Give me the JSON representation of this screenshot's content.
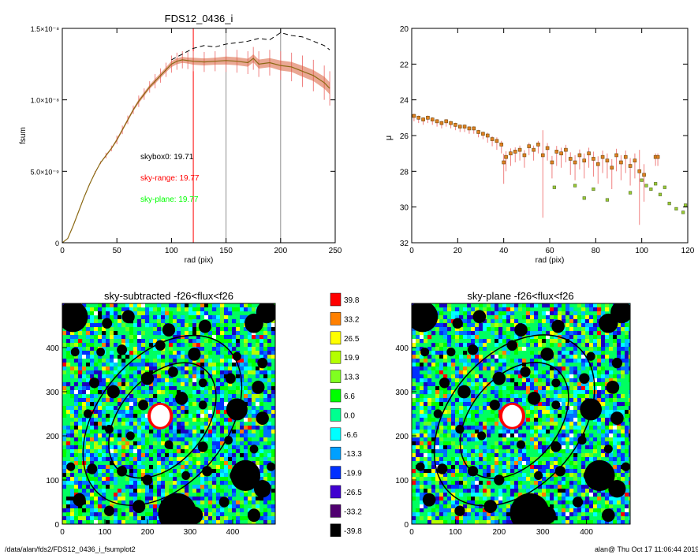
{
  "footer": {
    "path": "/data/alan/fds2/FDS12_0436_i_fsumplot2",
    "stamp": "alan@  Thu Oct 17 11:06:44 2019"
  },
  "colors": {
    "data_line": "#000000",
    "sky_range": "#ff0000",
    "sky_plane": "#00ff00",
    "error_bar": "#f08080",
    "profile_fill": "#d95f3a",
    "profile_line": "#8b6914",
    "vline_sky_range": "#ff0000",
    "vline_gray": "#909090"
  },
  "chart_data": [
    {
      "type": "line",
      "title": "FDS12_0436_i",
      "xlabel": "rad (pix)",
      "ylabel": "fsum",
      "xlim": [
        0,
        250
      ],
      "ylim": [
        0,
        1.5e-08
      ],
      "x_ticks": [
        "0",
        "50",
        "100",
        "150",
        "200",
        "250"
      ],
      "y_ticks": [
        {
          "value": 0,
          "label": "0"
        },
        {
          "value": 5e-09,
          "label": "5.0×10⁻⁹"
        },
        {
          "value": 1e-08,
          "label": "1.0×10⁻⁸"
        },
        {
          "value": 1.5e-08,
          "label": "1.5×10⁻⁸"
        }
      ],
      "annotations": [
        {
          "text": "skybox0: 19.71",
          "color": "#000000"
        },
        {
          "text": "sky-range: 19.77",
          "color": "#ff0000"
        },
        {
          "text": "sky-plane: 19.77",
          "color": "#00ff00"
        }
      ],
      "vertical_lines": [
        {
          "x": 120,
          "color": "#ff0000"
        },
        {
          "x": 150,
          "color": "#909090"
        },
        {
          "x": 200,
          "color": "#909090"
        }
      ],
      "series": [
        {
          "style": "solid",
          "x": [
            0,
            5,
            10,
            15,
            20,
            25,
            30,
            35,
            40,
            45,
            50,
            55,
            60,
            65,
            70,
            75,
            80,
            85,
            90,
            95,
            100,
            105,
            110,
            115,
            120,
            130,
            140,
            150,
            160,
            170,
            175,
            180,
            190,
            200,
            210,
            220,
            230,
            240,
            245
          ],
          "y": [
            0,
            3e-10,
            1.2e-09,
            2.2e-09,
            3.2e-09,
            4.1e-09,
            4.9e-09,
            5.6e-09,
            6.1e-09,
            6.6e-09,
            7.2e-09,
            7.9e-09,
            8.6e-09,
            9.3e-09,
            9.9e-09,
            1.04e-08,
            1.09e-08,
            1.13e-08,
            1.17e-08,
            1.21e-08,
            1.25e-08,
            1.27e-08,
            1.28e-08,
            1.275e-08,
            1.27e-08,
            1.265e-08,
            1.27e-08,
            1.275e-08,
            1.27e-08,
            1.26e-08,
            1.29e-08,
            1.25e-08,
            1.26e-08,
            1.24e-08,
            1.23e-08,
            1.2e-08,
            1.17e-08,
            1.12e-08,
            1.08e-08
          ],
          "yerr": [
            0,
            0,
            0,
            0,
            0,
            0,
            1e-10,
            1e-10,
            2e-10,
            2e-10,
            3e-10,
            3e-10,
            3e-10,
            3e-10,
            4e-10,
            4e-10,
            4e-10,
            5e-10,
            5e-10,
            5e-10,
            6e-10,
            6e-10,
            6e-10,
            6e-10,
            7e-10,
            7e-10,
            7e-10,
            8e-10,
            8e-10,
            8e-10,
            8e-10,
            9e-10,
            9e-10,
            1e-09,
            1e-09,
            1.1e-09,
            1.1e-09,
            1.2e-09,
            1.2e-09
          ]
        },
        {
          "style": "dashed",
          "x": [
            100,
            110,
            120,
            130,
            140,
            150,
            160,
            170,
            180,
            190,
            200,
            210,
            220,
            230,
            240,
            245
          ],
          "y": [
            1.28e-08,
            1.32e-08,
            1.36e-08,
            1.38e-08,
            1.37e-08,
            1.39e-08,
            1.4e-08,
            1.41e-08,
            1.43e-08,
            1.42e-08,
            1.47e-08,
            1.45e-08,
            1.44e-08,
            1.41e-08,
            1.38e-08,
            1.35e-08
          ]
        }
      ]
    },
    {
      "type": "scatter",
      "xlabel": "rad (pix)",
      "ylabel": "μ",
      "xlim": [
        0,
        120
      ],
      "ylim": [
        32,
        20
      ],
      "x_ticks": [
        "0",
        "20",
        "40",
        "60",
        "80",
        "100",
        "120"
      ],
      "y_ticks": [
        "20",
        "22",
        "24",
        "26",
        "28",
        "30",
        "32"
      ],
      "series": [
        {
          "marker": "orange-square",
          "x": [
            1,
            3,
            5,
            7,
            9,
            11,
            13,
            15,
            17,
            19,
            21,
            23,
            25,
            27,
            29,
            31,
            33,
            35,
            37,
            39,
            40,
            41,
            43,
            45,
            47,
            49,
            51,
            53,
            55,
            57,
            59,
            61,
            63,
            65,
            67,
            69,
            71,
            73,
            75,
            77,
            79,
            81,
            83,
            85,
            87,
            89,
            91,
            93,
            95,
            97,
            99,
            101,
            106,
            107
          ],
          "y": [
            24.9,
            25.0,
            25.1,
            25.0,
            25.1,
            25.2,
            25.3,
            25.2,
            25.3,
            25.4,
            25.5,
            25.5,
            25.6,
            25.6,
            25.8,
            25.9,
            26.0,
            26.2,
            26.3,
            26.5,
            27.5,
            27.2,
            27.0,
            26.9,
            26.8,
            27.1,
            26.6,
            26.8,
            26.5,
            27.1,
            26.7,
            27.5,
            26.9,
            27.0,
            26.8,
            27.3,
            27.5,
            27.1,
            27.4,
            27.0,
            27.3,
            27.6,
            27.2,
            27.4,
            27.8,
            27.1,
            27.5,
            27.2,
            27.7,
            27.4,
            28.0,
            28.2,
            27.2,
            27.2
          ],
          "yerr": [
            0.3,
            0.3,
            0.3,
            0.3,
            0.3,
            0.3,
            0.3,
            0.3,
            0.3,
            0.3,
            0.3,
            0.3,
            0.3,
            0.3,
            0.3,
            0.3,
            0.4,
            0.4,
            0.5,
            0.5,
            1.2,
            0.8,
            0.7,
            0.6,
            0.6,
            0.7,
            0.5,
            0.6,
            0.5,
            3.5,
            0.7,
            0.9,
            0.8,
            0.8,
            0.7,
            0.9,
            1.0,
            0.8,
            1.0,
            0.8,
            1.0,
            1.1,
            0.9,
            1.0,
            1.2,
            0.9,
            1.0,
            0.9,
            1.1,
            1.0,
            3.0,
            1.5,
            0.5,
            0.5
          ]
        },
        {
          "marker": "green-square",
          "x": [
            62,
            71,
            75,
            79,
            85,
            95,
            100,
            102,
            104,
            106,
            108,
            110,
            112,
            115,
            118,
            119
          ],
          "y": [
            28.9,
            28.8,
            29.5,
            29.0,
            29.6,
            29.2,
            28.5,
            28.8,
            29.0,
            28.7,
            29.3,
            28.9,
            29.8,
            30.1,
            30.3,
            29.9
          ]
        }
      ]
    },
    {
      "type": "heatmap",
      "title": "sky-subtracted -f26<flux<f26",
      "xlim": [
        0,
        500
      ],
      "ylim": [
        0,
        500
      ],
      "x_ticks": [
        "0",
        "100",
        "200",
        "300",
        "400"
      ],
      "y_ticks": [
        "0",
        "100",
        "200",
        "300",
        "400"
      ]
    },
    {
      "type": "heatmap",
      "title": "sky-plane -f26<flux<f26",
      "xlim": [
        0,
        500
      ],
      "ylim": [
        0,
        500
      ],
      "x_ticks": [
        "0",
        "100",
        "200",
        "300",
        "400"
      ],
      "y_ticks": [
        "0",
        "100",
        "200",
        "300",
        "400"
      ]
    },
    {
      "type": "colorbar",
      "levels": [
        {
          "label": "39.8",
          "color": "#ff0000"
        },
        {
          "label": "33.2",
          "color": "#ff8000"
        },
        {
          "label": "26.5",
          "color": "#ffff00"
        },
        {
          "label": "19.9",
          "color": "#b4ff00"
        },
        {
          "label": "13.3",
          "color": "#80ff20"
        },
        {
          "label": "6.6",
          "color": "#00ff00"
        },
        {
          "label": "0.0",
          "color": "#00ff90"
        },
        {
          "label": "-6.6",
          "color": "#00ffff"
        },
        {
          "label": "-13.3",
          "color": "#00a0ff"
        },
        {
          "label": "-19.9",
          "color": "#0030ff"
        },
        {
          "label": "-26.5",
          "color": "#4000d0"
        },
        {
          "label": "-33.2",
          "color": "#500070"
        },
        {
          "label": "-39.8",
          "color": "#000000"
        }
      ]
    }
  ]
}
